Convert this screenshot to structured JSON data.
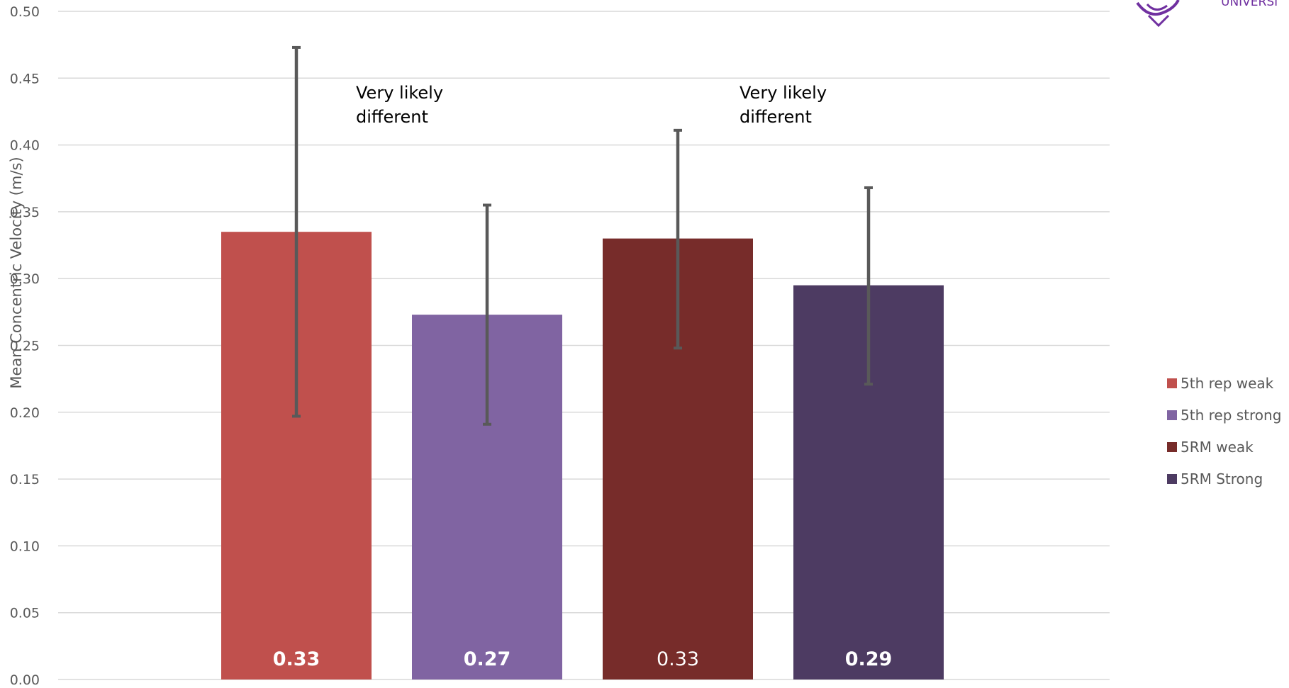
{
  "chart_data": {
    "type": "bar",
    "title": "",
    "xlabel": "",
    "ylabel": "Mean Concentric Velocity (m/s)",
    "ylim": [
      0,
      0.5
    ],
    "ytick_step": 0.05,
    "ytick_labels": [
      "0.00",
      "0.05",
      "0.10",
      "0.15",
      "0.20",
      "0.25",
      "0.30",
      "0.35",
      "0.40",
      "0.45",
      "0.50"
    ],
    "grid": true,
    "legend_position": "right",
    "series": [
      {
        "name": "5th rep weak",
        "value": 0.335,
        "error_low": 0.197,
        "error_high": 0.473,
        "label": "0.33",
        "label_bold": true,
        "color": "#c0504d"
      },
      {
        "name": "5th rep strong",
        "value": 0.273,
        "error_low": 0.191,
        "error_high": 0.355,
        "label": "0.27",
        "label_bold": true,
        "color": "#8064a2"
      },
      {
        "name": "5RM weak",
        "value": 0.33,
        "error_low": 0.248,
        "error_high": 0.411,
        "label": "0.33",
        "label_bold": false,
        "color": "#772c2a"
      },
      {
        "name": "5RM Strong",
        "value": 0.295,
        "error_low": 0.221,
        "error_high": 0.368,
        "label": "0.29",
        "label_bold": true,
        "color": "#4d3b62"
      }
    ],
    "annotations": [
      {
        "lines": [
          "Very likely",
          "different"
        ],
        "between": [
          "5th rep weak",
          "5th rep strong"
        ]
      },
      {
        "lines": [
          "Very likely",
          "different"
        ],
        "between": [
          "5RM weak",
          "5RM Strong"
        ]
      }
    ],
    "error_bar_color": "#595959",
    "grid_color": "#d9d9d9"
  },
  "logo": {
    "color": "#7030a0",
    "partial_text": "UNIVERSI"
  }
}
